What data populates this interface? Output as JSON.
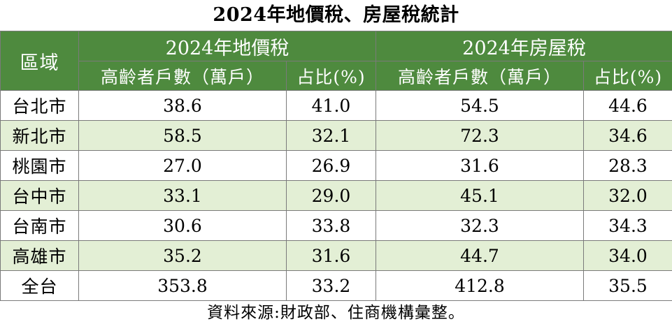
{
  "title": "2024年地價稅、房屋稅統計",
  "header": {
    "region": "區域",
    "land_tax": "2024年地價稅",
    "house_tax": "2024年房屋稅",
    "count_label": "高齡者戶數（萬戶）",
    "share_label": "占比(%)"
  },
  "rows": [
    {
      "region": "台北市",
      "land_count": "38.6",
      "land_share": "41.0",
      "house_count": "54.5",
      "house_share": "44.6"
    },
    {
      "region": "新北市",
      "land_count": "58.5",
      "land_share": "32.1",
      "house_count": "72.3",
      "house_share": "34.6"
    },
    {
      "region": "桃園市",
      "land_count": "27.0",
      "land_share": "26.9",
      "house_count": "31.6",
      "house_share": "28.3"
    },
    {
      "region": "台中市",
      "land_count": "33.1",
      "land_share": "29.0",
      "house_count": "45.1",
      "house_share": "32.0"
    },
    {
      "region": "台南市",
      "land_count": "30.6",
      "land_share": "33.8",
      "house_count": "32.3",
      "house_share": "34.3"
    },
    {
      "region": "高雄市",
      "land_count": "35.2",
      "land_share": "31.6",
      "house_count": "44.7",
      "house_share": "34.0"
    },
    {
      "region": "全台",
      "land_count": "353.8",
      "land_share": "33.2",
      "house_count": "412.8",
      "house_share": "35.5"
    }
  ],
  "source": "資料來源:財政部、住商機構彙整。",
  "colors": {
    "header_bg": "#4e8a3e",
    "header_text": "#ffffff",
    "alt_row_bg": "#e3efd5",
    "border": "#7a7a7a"
  }
}
